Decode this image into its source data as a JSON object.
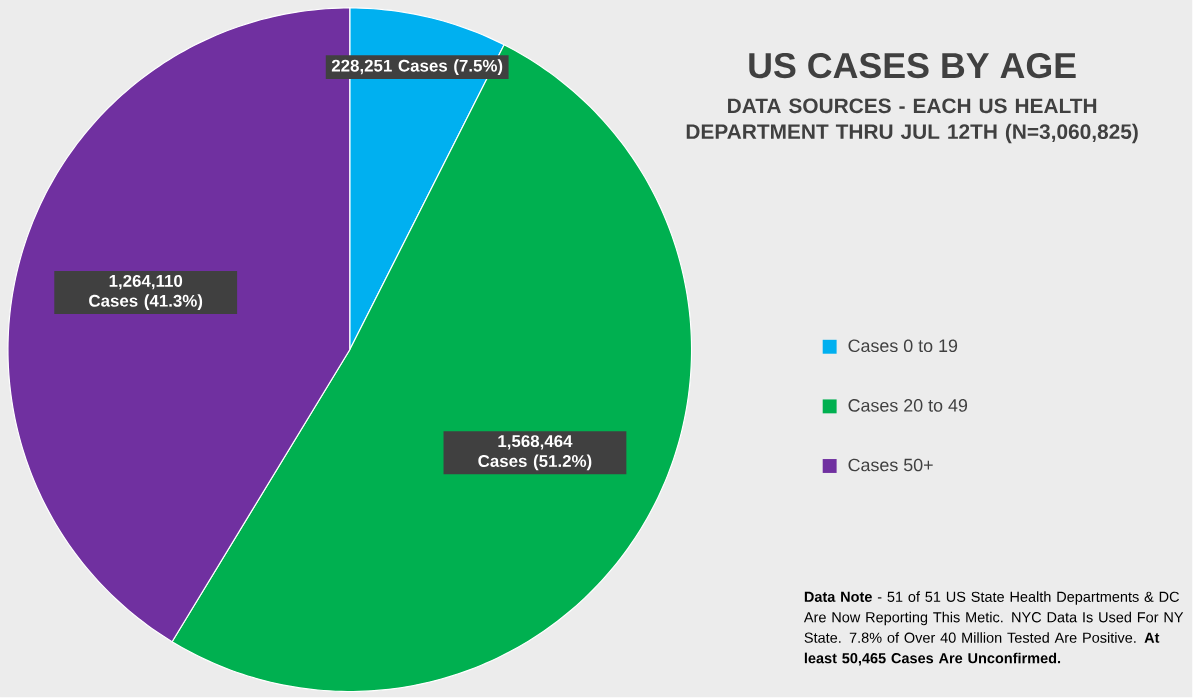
{
  "chart_data": {
    "type": "pie",
    "title": "US CASES BY AGE",
    "subtitle": "DATA SOURCES - EACH US HEALTH DEPARTMENT THRU JUL 12TH (N=3,060,825)",
    "categories": [
      "Cases 0 to 19",
      "Cases 20 to 49",
      "Cases 50+"
    ],
    "values": [
      228251,
      1568464,
      1264110
    ],
    "colors": [
      "#00b0f0",
      "#00b050",
      "#7030a0"
    ],
    "value_labels": [
      "228,251 Cases (7.5%)",
      "1,568,464 Cases (51.2%)",
      "1,264,110 Cases (41.3%)"
    ],
    "legend": "right",
    "annotations": [
      "**Data Note** - 51 of 51 US State Health Departments & DC Are Now Reporting This Metic. NYC Data Is Used For NY State. 7.8% of Over 40 Million Tested Are Positive. **At least 50,465 Cases Are Unconfirmed.**"
    ]
  }
}
